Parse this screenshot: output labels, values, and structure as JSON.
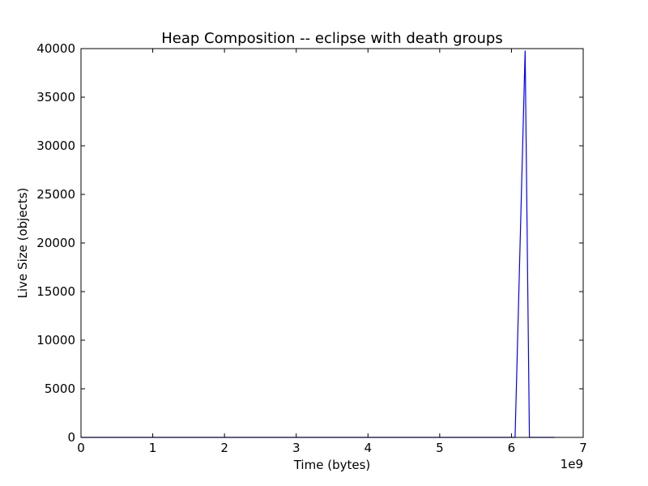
{
  "chart_data": {
    "type": "line",
    "title": "Heap Composition -- eclipse with death groups",
    "xlabel": "Time (bytes)",
    "ylabel": "Live Size (objects)",
    "x_scale_label": "1e9",
    "xlim": [
      0,
      7
    ],
    "ylim": [
      0,
      40000
    ],
    "x_ticks": [
      "0",
      "1",
      "2",
      "3",
      "4",
      "5",
      "6",
      "7"
    ],
    "y_ticks": [
      "0",
      "5000",
      "10000",
      "15000",
      "20000",
      "25000",
      "30000",
      "35000",
      "40000"
    ],
    "x_tick_values": [
      0,
      1,
      2,
      3,
      4,
      5,
      6,
      7
    ],
    "y_tick_values": [
      0,
      5000,
      10000,
      15000,
      20000,
      25000,
      30000,
      35000,
      40000
    ],
    "grid": false,
    "series": [
      {
        "color": "#0000ff",
        "x": [
          0,
          6.05,
          6.19,
          6.25,
          6.6
        ],
        "y": [
          0,
          0,
          39800,
          0,
          0
        ]
      }
    ]
  }
}
